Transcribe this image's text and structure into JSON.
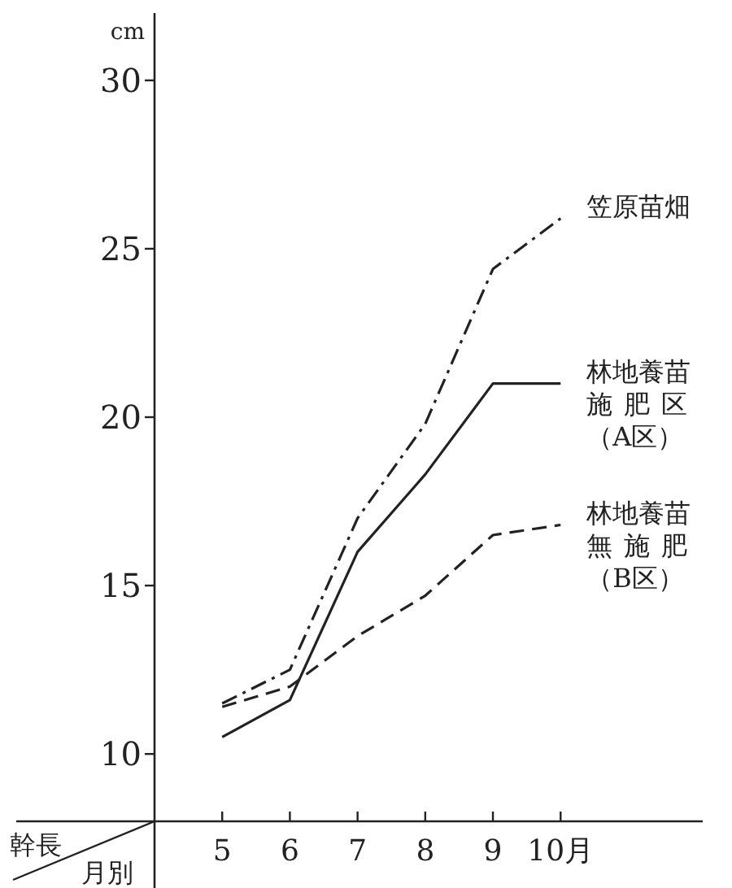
{
  "chart_data": {
    "type": "line",
    "xlabel": "月別",
    "ylabel": "幹長",
    "annotations": [
      "cm"
    ],
    "x": [
      5,
      6,
      7,
      8,
      9,
      10
    ],
    "xlim": [
      4,
      12.1
    ],
    "ylim": [
      8,
      32
    ],
    "xticks": [
      5,
      6,
      7,
      8,
      9,
      {
        "value": 10,
        "label": "10月"
      }
    ],
    "yticks": [
      10,
      15,
      20,
      25,
      30
    ],
    "grid": false,
    "legend": false,
    "marker": "none",
    "series": [
      {
        "name": "笠原苗畑",
        "color": "#222222",
        "line_style": "dashdot",
        "values": [
          11.5,
          12.5,
          17.0,
          19.8,
          24.4,
          25.9
        ]
      },
      {
        "name": "林地養苗施肥区（A区）",
        "color": "#222222",
        "line_style": "solid",
        "values": [
          10.5,
          11.6,
          16.0,
          18.3,
          21.0,
          21.0
        ]
      },
      {
        "name": "林地養苗無施肥（B区）",
        "color": "#222222",
        "line_style": "dashed",
        "values": [
          11.4,
          12.0,
          13.5,
          14.7,
          16.5,
          16.8
        ]
      }
    ]
  }
}
